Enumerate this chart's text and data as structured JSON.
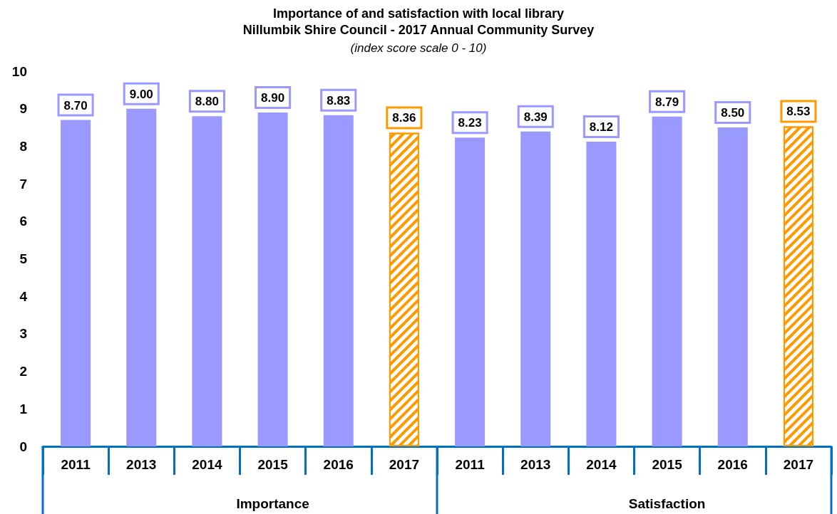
{
  "chart_data": {
    "type": "bar",
    "title": "Importance of and satisfaction with local library\nNillumbik Shire Council - 2017 Annual Community Survey",
    "subtitle": "(index score scale 0 - 10)",
    "categories": [
      "2011",
      "2013",
      "2014",
      "2015",
      "2016",
      "2017",
      "2011",
      "2013",
      "2014",
      "2015",
      "2016",
      "2017"
    ],
    "values": [
      8.7,
      9.0,
      8.8,
      8.9,
      8.83,
      8.36,
      8.23,
      8.39,
      8.12,
      8.79,
      8.5,
      8.53
    ],
    "value_labels": [
      "8.70",
      "9.00",
      "8.80",
      "8.90",
      "8.83",
      "8.36",
      "8.23",
      "8.39",
      "8.12",
      "8.79",
      "8.50",
      "8.53"
    ],
    "colors": [
      "#9999ff",
      "#9999ff",
      "#9999ff",
      "#9999ff",
      "#9999ff",
      "#ff9900",
      "#9999ff",
      "#9999ff",
      "#9999ff",
      "#9999ff",
      "#9999ff",
      "#ff9900"
    ],
    "annotations": [
      "Importance",
      "Satisfaction"
    ],
    "ylim": [
      0,
      10
    ],
    "yticks": [
      0,
      1,
      2,
      3,
      4,
      5,
      6,
      7,
      8,
      9,
      10
    ],
    "grid": false
  }
}
